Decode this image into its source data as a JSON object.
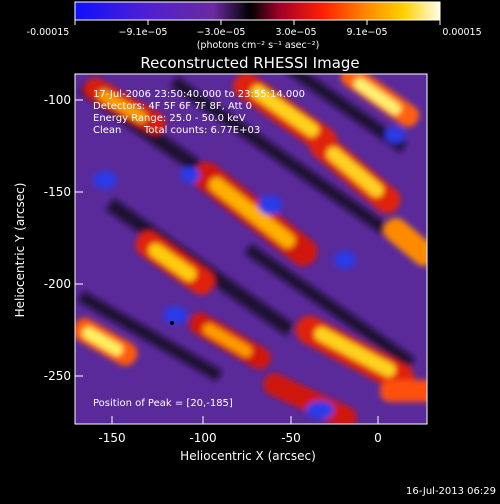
{
  "colorbar": {
    "ticks": [
      "-0.00015",
      "−9.1e−05",
      "−3.0e−05",
      "3.0e−05",
      "9.1e−05",
      "0.00015"
    ],
    "unit": "(photons cm⁻² s⁻¹ asec⁻²)"
  },
  "title": "Reconstructed RHESSI Image",
  "info": {
    "time_range": "17-Jul-2006 23:50:40.000 to 23:55:14.000",
    "detectors": "Detectors: 4F 5F 6F 7F 8F, Att 0",
    "energy": "Energy Range: 25.0 - 50.0 keV",
    "method": "Clean",
    "counts": "Total counts: 6.77E+03",
    "peak": "Position of Peak = [20,-185]"
  },
  "axes": {
    "xlabel": "Heliocentric X (arcsec)",
    "ylabel": "Heliocentric Y (arcsec)",
    "xticks": [
      "-150",
      "-100",
      "-50",
      "0"
    ],
    "yticks": [
      "-100",
      "-150",
      "-200",
      "-250"
    ]
  },
  "footer": "16-Jul-2013 06:29",
  "colors": {
    "background": "#000000",
    "text": "#ffffff"
  }
}
